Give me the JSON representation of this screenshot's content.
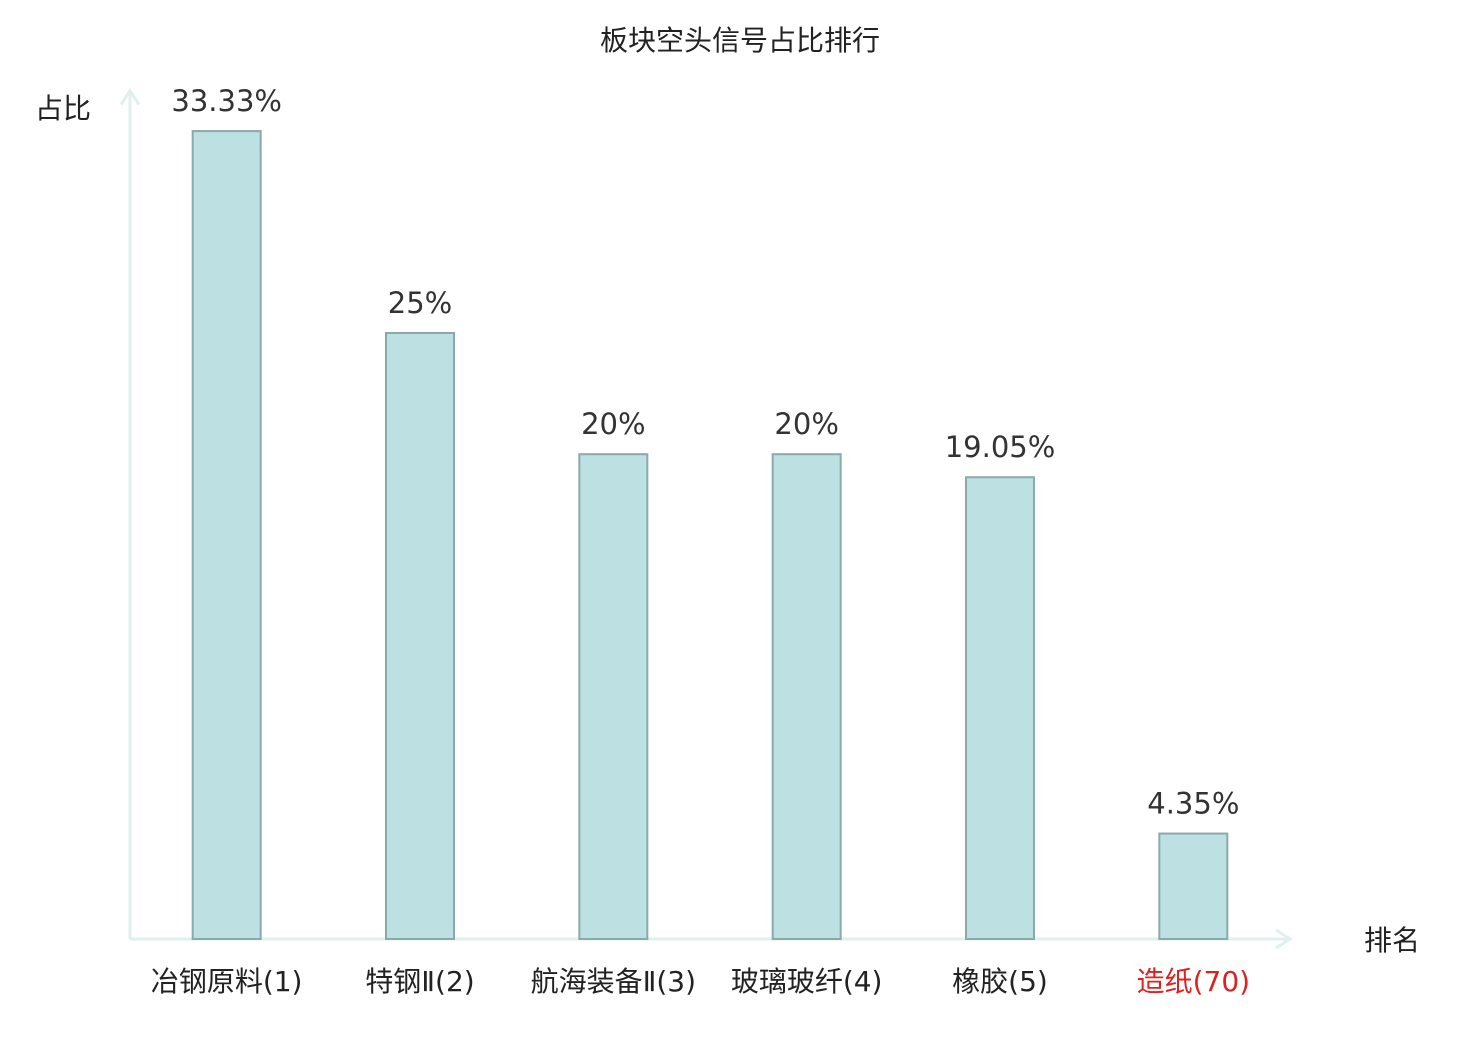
{
  "chart_data": {
    "type": "bar",
    "title": "板块空头信号占比排行",
    "x_label": "排名",
    "y_label": "占比",
    "categories": [
      "冶钢原料(1)",
      "特钢Ⅱ(2)",
      "航海装备Ⅱ(3)",
      "玻璃玻纤(4)",
      "橡胶(5)",
      "造纸(70)"
    ],
    "category_colors": [
      "#222222",
      "#222222",
      "#222222",
      "#222222",
      "#222222",
      "#e02020"
    ],
    "values": [
      33.33,
      25,
      20,
      20,
      19.05,
      4.35
    ],
    "value_labels": [
      "33.33%",
      "25%",
      "20%",
      "20%",
      "19.05%",
      "4.35%"
    ],
    "color": "#bde0e3",
    "edge_color": "#8aa9ab",
    "axis_color": "#dff0ee",
    "ylim": [
      0,
      35
    ]
  }
}
